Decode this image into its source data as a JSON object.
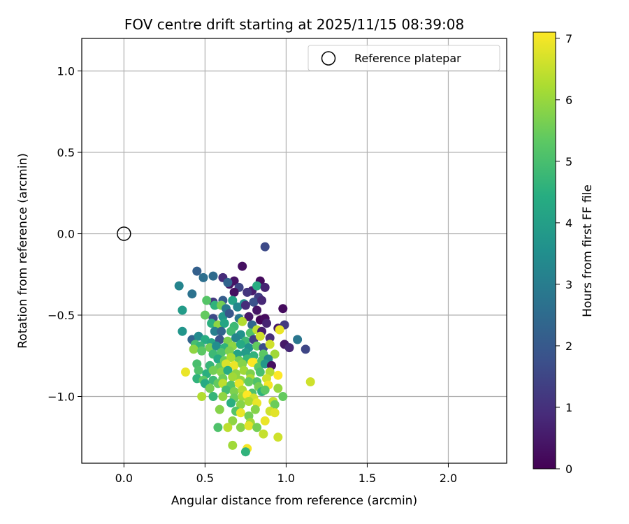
{
  "chart_data": {
    "type": "scatter",
    "title": "FOV centre drift starting at 2025/11/15 08:39:08",
    "xlabel": "Angular distance from reference (arcmin)",
    "ylabel": "Rotation from reference (arcmin)",
    "xlim": [
      -0.26,
      2.36
    ],
    "ylim": [
      -1.41,
      1.2
    ],
    "xticks": [
      0.0,
      0.5,
      1.0,
      1.5,
      2.0
    ],
    "xtick_labels": [
      "0.0",
      "0.5",
      "1.0",
      "1.5",
      "2.0"
    ],
    "yticks": [
      1.0,
      0.5,
      0.0,
      -0.5,
      -1.0
    ],
    "ytick_labels": [
      "1.0",
      "0.5",
      "0.0",
      "−0.5",
      "−1.0"
    ],
    "grid": true,
    "legend": {
      "position": "top-right",
      "entries": [
        "Reference platepar"
      ]
    },
    "reference_point": {
      "x": 0.0,
      "y": 0.0,
      "marker": "open-circle"
    },
    "colorbar": {
      "label": "Hours from first FF file",
      "range": [
        0,
        7.1
      ],
      "ticks": [
        0,
        1,
        2,
        3,
        4,
        5,
        6,
        7
      ],
      "tick_labels": [
        "0",
        "1",
        "2",
        "3",
        "4",
        "5",
        "6",
        "7"
      ],
      "colormap": "viridis"
    },
    "series": [
      {
        "name": "FOV centre",
        "points": [
          [
            0.87,
            -0.08,
            1.6
          ],
          [
            0.73,
            -0.2,
            0.3
          ],
          [
            0.45,
            -0.23,
            2.2
          ],
          [
            0.49,
            -0.27,
            2.6
          ],
          [
            0.55,
            -0.26,
            2.5
          ],
          [
            0.61,
            -0.27,
            0.9
          ],
          [
            0.65,
            -0.31,
            0.5
          ],
          [
            0.68,
            -0.29,
            0.4
          ],
          [
            0.84,
            -0.29,
            0.2
          ],
          [
            0.34,
            -0.32,
            3.2
          ],
          [
            0.64,
            -0.3,
            2.3
          ],
          [
            0.71,
            -0.33,
            1.5
          ],
          [
            0.79,
            -0.35,
            0.6
          ],
          [
            0.82,
            -0.32,
            4.4
          ],
          [
            0.87,
            -0.33,
            0.7
          ],
          [
            0.42,
            -0.37,
            2.7
          ],
          [
            0.68,
            -0.36,
            0.3
          ],
          [
            0.76,
            -0.36,
            1.1
          ],
          [
            0.83,
            -0.39,
            1.3
          ],
          [
            0.55,
            -0.42,
            1.2
          ],
          [
            0.61,
            -0.41,
            2.1
          ],
          [
            0.67,
            -0.41,
            4.1
          ],
          [
            0.74,
            -0.43,
            3.4
          ],
          [
            0.8,
            -0.42,
            1.8
          ],
          [
            0.85,
            -0.41,
            0.8
          ],
          [
            0.36,
            -0.47,
            3.9
          ],
          [
            0.51,
            -0.41,
            5.2
          ],
          [
            0.56,
            -0.44,
            4.6
          ],
          [
            0.6,
            -0.44,
            5.6
          ],
          [
            0.63,
            -0.46,
            2.9
          ],
          [
            0.7,
            -0.45,
            3.3
          ],
          [
            0.75,
            -0.44,
            0.9
          ],
          [
            0.82,
            -0.47,
            0.4
          ],
          [
            0.98,
            -0.46,
            0.2
          ],
          [
            0.5,
            -0.5,
            5.4
          ],
          [
            0.55,
            -0.52,
            1.6
          ],
          [
            0.61,
            -0.51,
            3.8
          ],
          [
            0.65,
            -0.49,
            1.9
          ],
          [
            0.71,
            -0.52,
            2.8
          ],
          [
            0.77,
            -0.51,
            0.5
          ],
          [
            0.84,
            -0.53,
            0.1
          ],
          [
            0.87,
            -0.52,
            0.2
          ],
          [
            0.54,
            -0.55,
            4.5
          ],
          [
            0.58,
            -0.56,
            5.9
          ],
          [
            0.62,
            -0.55,
            4.2
          ],
          [
            0.68,
            -0.57,
            4.8
          ],
          [
            0.73,
            -0.54,
            6.3
          ],
          [
            0.79,
            -0.56,
            2.4
          ],
          [
            0.88,
            -0.55,
            0.7
          ],
          [
            0.95,
            -0.58,
            0.5
          ],
          [
            0.99,
            -0.56,
            1.2
          ],
          [
            0.36,
            -0.6,
            3.7
          ],
          [
            0.56,
            -0.6,
            3.1
          ],
          [
            0.6,
            -0.6,
            2.3
          ],
          [
            0.66,
            -0.6,
            4.9
          ],
          [
            0.72,
            -0.62,
            3.6
          ],
          [
            0.78,
            -0.61,
            5.1
          ],
          [
            0.82,
            -0.59,
            6.4
          ],
          [
            0.85,
            -0.6,
            0.6
          ],
          [
            0.96,
            -0.59,
            6.9
          ],
          [
            0.42,
            -0.65,
            2.3
          ],
          [
            0.46,
            -0.63,
            3.4
          ],
          [
            0.5,
            -0.65,
            4.4
          ],
          [
            0.54,
            -0.67,
            4.2
          ],
          [
            0.59,
            -0.65,
            1.8
          ],
          [
            0.64,
            -0.66,
            5.7
          ],
          [
            0.69,
            -0.64,
            3.2
          ],
          [
            0.75,
            -0.66,
            4.8
          ],
          [
            0.8,
            -0.65,
            1.3
          ],
          [
            0.84,
            -0.63,
            6.6
          ],
          [
            0.9,
            -0.64,
            0.9
          ],
          [
            1.07,
            -0.65,
            2.8
          ],
          [
            0.44,
            -0.68,
            5.0
          ],
          [
            0.47,
            -0.69,
            4.7
          ],
          [
            0.53,
            -0.7,
            5.6
          ],
          [
            0.57,
            -0.69,
            3.5
          ],
          [
            0.62,
            -0.7,
            4.6
          ],
          [
            0.67,
            -0.69,
            5.9
          ],
          [
            0.72,
            -0.68,
            4.3
          ],
          [
            0.77,
            -0.7,
            3.6
          ],
          [
            0.82,
            -0.69,
            5.4
          ],
          [
            0.86,
            -0.7,
            1.7
          ],
          [
            0.9,
            -0.68,
            6.6
          ],
          [
            0.99,
            -0.68,
            0.5
          ],
          [
            1.02,
            -0.7,
            0.8
          ],
          [
            1.12,
            -0.71,
            1.5
          ],
          [
            0.43,
            -0.71,
            5.9
          ],
          [
            0.48,
            -0.72,
            5.3
          ],
          [
            0.55,
            -0.74,
            4.8
          ],
          [
            0.6,
            -0.73,
            5.1
          ],
          [
            0.65,
            -0.72,
            5.7
          ],
          [
            0.7,
            -0.74,
            4.1
          ],
          [
            0.75,
            -0.73,
            3.9
          ],
          [
            0.8,
            -0.75,
            4.6
          ],
          [
            0.86,
            -0.74,
            5.3
          ],
          [
            0.93,
            -0.74,
            6.1
          ],
          [
            0.58,
            -0.77,
            4.3
          ],
          [
            0.62,
            -0.78,
            5.5
          ],
          [
            0.66,
            -0.76,
            6.2
          ],
          [
            0.71,
            -0.78,
            5.6
          ],
          [
            0.76,
            -0.77,
            4.7
          ],
          [
            0.8,
            -0.79,
            7.0
          ],
          [
            0.85,
            -0.78,
            5.2
          ],
          [
            0.89,
            -0.77,
            3.3
          ],
          [
            0.45,
            -0.8,
            5.0
          ],
          [
            0.53,
            -0.81,
            4.7
          ],
          [
            0.59,
            -0.82,
            5.4
          ],
          [
            0.63,
            -0.8,
            6.7
          ],
          [
            0.68,
            -0.81,
            6.9
          ],
          [
            0.73,
            -0.8,
            5.8
          ],
          [
            0.79,
            -0.79,
            7.1
          ],
          [
            0.83,
            -0.82,
            5.3
          ],
          [
            0.87,
            -0.8,
            3.8
          ],
          [
            0.91,
            -0.81,
            0.3
          ],
          [
            0.38,
            -0.85,
            6.9
          ],
          [
            0.46,
            -0.84,
            5.1
          ],
          [
            0.51,
            -0.86,
            4.5
          ],
          [
            0.55,
            -0.84,
            5.6
          ],
          [
            0.6,
            -0.85,
            5.8
          ],
          [
            0.64,
            -0.84,
            4.4
          ],
          [
            0.69,
            -0.86,
            5.9
          ],
          [
            0.74,
            -0.84,
            6.1
          ],
          [
            0.78,
            -0.86,
            5.7
          ],
          [
            0.84,
            -0.85,
            5.0
          ],
          [
            0.9,
            -0.85,
            6.3
          ],
          [
            0.95,
            -0.87,
            7.1
          ],
          [
            0.45,
            -0.89,
            4.6
          ],
          [
            0.49,
            -0.9,
            5.3
          ],
          [
            0.55,
            -0.9,
            4.8
          ],
          [
            0.61,
            -0.89,
            5.5
          ],
          [
            0.67,
            -0.88,
            6.1
          ],
          [
            0.72,
            -0.9,
            5.9
          ],
          [
            0.78,
            -0.89,
            6.2
          ],
          [
            0.82,
            -0.91,
            5.1
          ],
          [
            0.88,
            -0.89,
            6.6
          ],
          [
            0.5,
            -0.92,
            4.3
          ],
          [
            0.58,
            -0.92,
            5.4
          ],
          [
            0.61,
            -0.92,
            6.4
          ],
          [
            0.66,
            -0.93,
            5.2
          ],
          [
            0.71,
            -0.92,
            6.9
          ],
          [
            0.77,
            -0.91,
            5.4
          ],
          [
            0.83,
            -0.94,
            5.6
          ],
          [
            0.89,
            -0.93,
            7.0
          ],
          [
            1.15,
            -0.91,
            6.6
          ],
          [
            0.53,
            -0.95,
            5.6
          ],
          [
            0.63,
            -0.96,
            4.9
          ],
          [
            0.68,
            -0.97,
            5.7
          ],
          [
            0.73,
            -0.96,
            6.3
          ],
          [
            0.79,
            -0.98,
            5.1
          ],
          [
            0.85,
            -0.97,
            4.6
          ],
          [
            0.87,
            -0.96,
            5.3
          ],
          [
            0.95,
            -0.95,
            6.0
          ],
          [
            0.48,
            -1.0,
            6.3
          ],
          [
            0.55,
            -1.0,
            4.7
          ],
          [
            0.61,
            -1.0,
            5.9
          ],
          [
            0.68,
            -1.01,
            5.5
          ],
          [
            0.73,
            -1.0,
            6.1
          ],
          [
            0.76,
            -0.99,
            7.1
          ],
          [
            0.8,
            -1.01,
            6.6
          ],
          [
            0.92,
            -1.03,
            6.5
          ],
          [
            0.98,
            -1.0,
            5.4
          ],
          [
            0.66,
            -1.04,
            4.5
          ],
          [
            0.72,
            -1.05,
            5.8
          ],
          [
            0.77,
            -1.03,
            6.2
          ],
          [
            0.82,
            -1.04,
            6.9
          ],
          [
            0.93,
            -1.05,
            5.5
          ],
          [
            0.59,
            -1.08,
            5.8
          ],
          [
            0.69,
            -1.09,
            5.2
          ],
          [
            0.72,
            -1.1,
            6.9
          ],
          [
            0.81,
            -1.08,
            5.8
          ],
          [
            0.9,
            -1.09,
            6.6
          ],
          [
            0.93,
            -1.1,
            6.8
          ],
          [
            0.77,
            -1.12,
            5.6
          ],
          [
            0.87,
            -1.15,
            6.9
          ],
          [
            0.67,
            -1.15,
            5.9
          ],
          [
            0.78,
            -1.16,
            6.1
          ],
          [
            0.58,
            -1.19,
            5.1
          ],
          [
            0.64,
            -1.19,
            6.4
          ],
          [
            0.72,
            -1.19,
            5.8
          ],
          [
            0.77,
            -1.18,
            6.8
          ],
          [
            0.82,
            -1.19,
            5.6
          ],
          [
            0.86,
            -1.23,
            6.5
          ],
          [
            0.95,
            -1.25,
            6.6
          ],
          [
            0.67,
            -1.3,
            6.1
          ],
          [
            0.76,
            -1.32,
            7.0
          ],
          [
            0.75,
            -1.34,
            4.6
          ]
        ]
      }
    ]
  }
}
